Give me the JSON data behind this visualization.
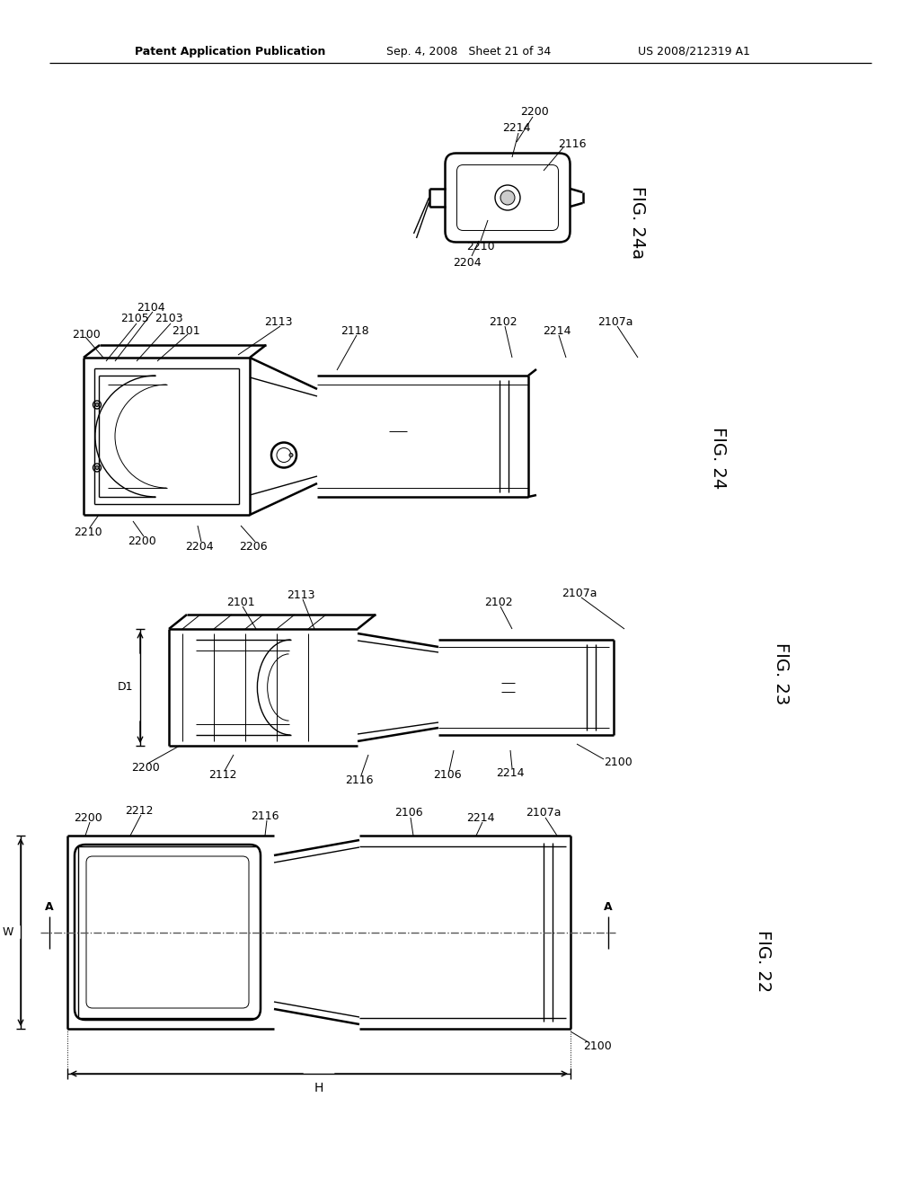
{
  "bg_color": "#ffffff",
  "line_color": "#000000",
  "header_left": "Patent Application Publication",
  "header_center": "Sep. 4, 2008   Sheet 21 of 34",
  "header_right": "US 2008/212319 A1",
  "fig22_label": "FIG. 22",
  "fig23_label": "FIG. 23",
  "fig24_label": "FIG. 24",
  "fig24a_label": "FIG. 24a"
}
